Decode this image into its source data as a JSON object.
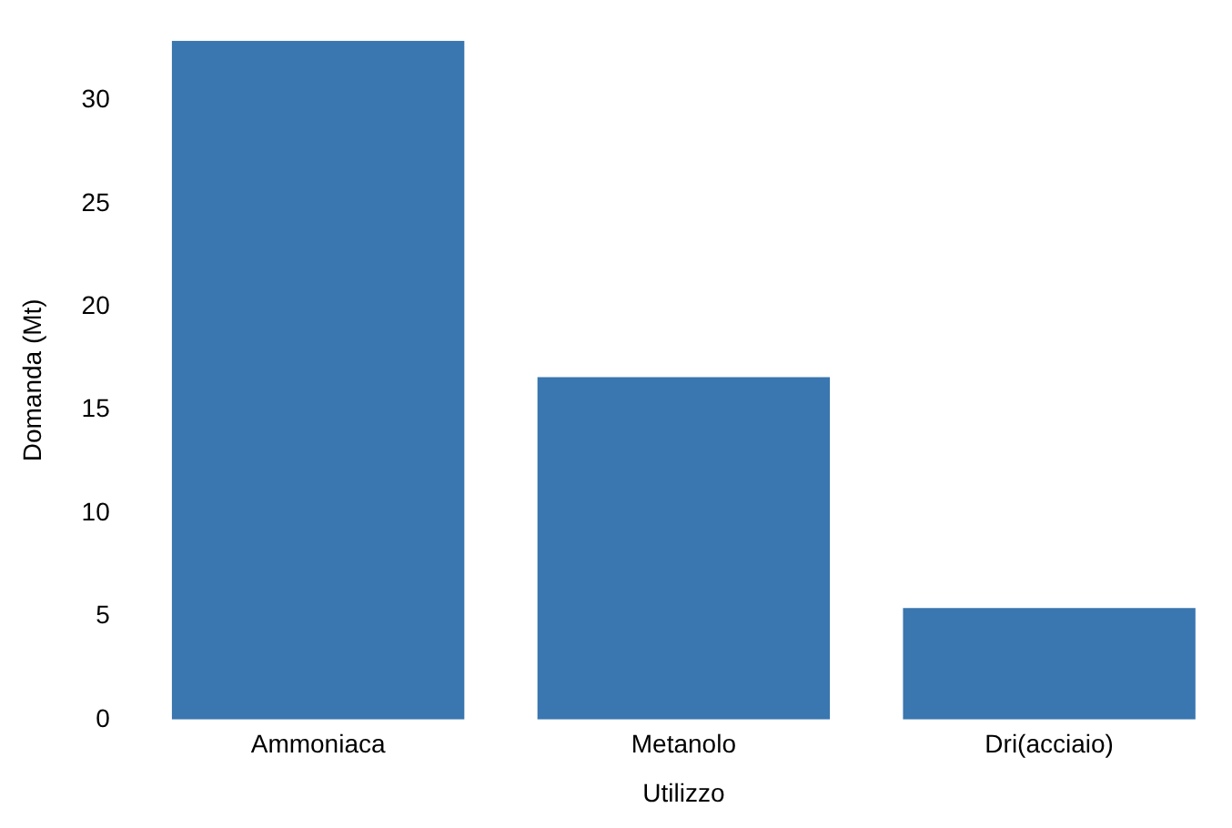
{
  "chart_data": {
    "type": "bar",
    "xlabel": "Utilizzo",
    "ylabel": "Domanda (Mt)",
    "categories": [
      "Ammoniaca",
      "Metanolo",
      "Dri(acciaio)"
    ],
    "values": [
      32.9,
      16.6,
      5.4
    ],
    "color": "#3a76af",
    "ylim": [
      0,
      32.9
    ],
    "yticks": [
      0,
      5,
      10,
      15,
      20,
      25,
      30
    ],
    "grid": false,
    "legend": false
  }
}
